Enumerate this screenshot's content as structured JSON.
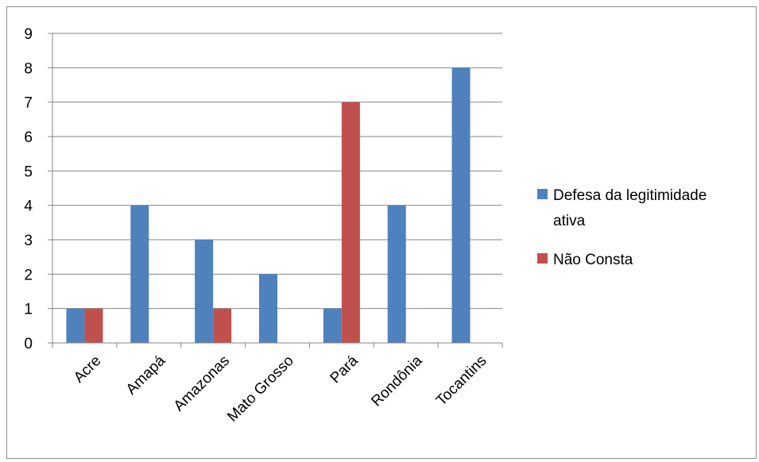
{
  "chart_data": {
    "type": "bar",
    "categories": [
      "Acre",
      "Amapá",
      "Amazonas",
      "Mato Grosso",
      "Pará",
      "Rondônia",
      "Tocantins"
    ],
    "series": [
      {
        "name": "Defesa da legitimidade ativa",
        "legend_lines": [
          "Defesa da legitimidade",
          "ativa"
        ],
        "color": "#4f81bd",
        "values": [
          1,
          4,
          3,
          2,
          1,
          4,
          8
        ]
      },
      {
        "name": "Não Consta",
        "legend_lines": [
          "Não Consta"
        ],
        "color": "#c0504d",
        "values": [
          1,
          0,
          1,
          0,
          7,
          0,
          0
        ]
      }
    ],
    "y_ticks": [
      "0",
      "1",
      "2",
      "3",
      "4",
      "5",
      "6",
      "7",
      "8",
      "9"
    ],
    "ylim": [
      0,
      9
    ],
    "grid": true,
    "legend_position": "right"
  }
}
